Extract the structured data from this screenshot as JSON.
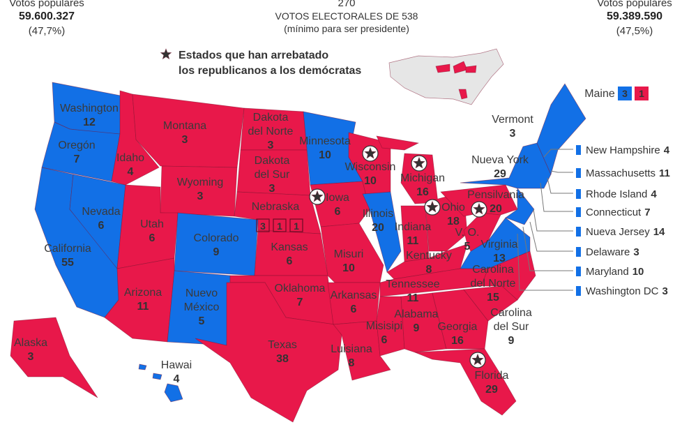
{
  "header": {
    "left": {
      "label": "Votos populares",
      "votes": "59.600.327",
      "share": "(47,7%)"
    },
    "center": {
      "number": "270",
      "line1": "VOTOS ELECTORALES DE 538",
      "line2": "(mínimo para ser presidente)"
    },
    "right": {
      "label": "Votos populares",
      "votes": "59.389.590",
      "share": "(47,5%)"
    }
  },
  "legend": {
    "line1": "Estados que han arrebatado",
    "line2": "los republicanos a los demócratas"
  },
  "states": [
    {
      "name": [
        "Washington"
      ],
      "votes": "12"
    },
    {
      "name": [
        "Oregón"
      ],
      "votes": "7"
    },
    {
      "name": [
        "California"
      ],
      "votes": "55"
    },
    {
      "name": [
        "Nevada"
      ],
      "votes": "6"
    },
    {
      "name": [
        "Idaho"
      ],
      "votes": "4"
    },
    {
      "name": [
        "Montana"
      ],
      "votes": "3"
    },
    {
      "name": [
        "Wyoming"
      ],
      "votes": "3"
    },
    {
      "name": [
        "Utah"
      ],
      "votes": "6"
    },
    {
      "name": [
        "Colorado"
      ],
      "votes": "9"
    },
    {
      "name": [
        "Arizona"
      ],
      "votes": "11"
    },
    {
      "name": [
        "Nuevo",
        "México"
      ],
      "votes": "5"
    },
    {
      "name": [
        "Dakota",
        "del Norte"
      ],
      "votes": "3"
    },
    {
      "name": [
        "Dakota",
        "del Sur"
      ],
      "votes": "3"
    },
    {
      "name": [
        "Kansas"
      ],
      "votes": "6"
    },
    {
      "name": [
        "Oklahoma"
      ],
      "votes": "7"
    },
    {
      "name": [
        "Texas"
      ],
      "votes": "38"
    },
    {
      "name": [
        "Minnesota"
      ],
      "votes": "10"
    },
    {
      "name": [
        "Iowa"
      ],
      "votes": "6"
    },
    {
      "name": [
        "Misuri"
      ],
      "votes": "10"
    },
    {
      "name": [
        "Arkansas"
      ],
      "votes": "6"
    },
    {
      "name": [
        "Luisiana"
      ],
      "votes": "8"
    },
    {
      "name": [
        "Wisconsin"
      ],
      "votes": "10"
    },
    {
      "name": [
        "Illinois"
      ],
      "votes": "20"
    },
    {
      "name": [
        "Michigan"
      ],
      "votes": "16"
    },
    {
      "name": [
        "Indiana"
      ],
      "votes": "11"
    },
    {
      "name": [
        "Ohio"
      ],
      "votes": "18"
    },
    {
      "name": [
        "Kentucky"
      ],
      "votes": "8"
    },
    {
      "name": [
        "Tennessee"
      ],
      "votes": "11"
    },
    {
      "name": [
        "Misisipi"
      ],
      "votes": "6"
    },
    {
      "name": [
        "Alabama"
      ],
      "votes": "9"
    },
    {
      "name": [
        "Georgia"
      ],
      "votes": "16"
    },
    {
      "name": [
        "Florida"
      ],
      "votes": "29"
    },
    {
      "name": [
        "Carolina",
        "del Sur"
      ],
      "votes": "9"
    },
    {
      "name": [
        "Carolina",
        "del Norte"
      ],
      "votes": "15"
    },
    {
      "name": [
        "Virginia"
      ],
      "votes": "13"
    },
    {
      "name": [
        "V. O."
      ],
      "votes": "5"
    },
    {
      "name": [
        "Pensilvania"
      ],
      "votes": "20"
    },
    {
      "name": [
        "Nueva York"
      ],
      "votes": "29"
    },
    {
      "name": [
        "Vermont"
      ],
      "votes": "3"
    },
    {
      "name": [
        "Alaska"
      ],
      "votes": "3"
    },
    {
      "name": [
        "Hawai"
      ],
      "votes": "4"
    }
  ],
  "split_states": [
    {
      "name": "Nebraska",
      "boxes": [
        "3",
        "1",
        "1"
      ]
    },
    {
      "name": "Maine",
      "boxes": [
        "3",
        "1"
      ]
    }
  ],
  "small_states": [
    {
      "name": "New Hampshire",
      "votes": "4"
    },
    {
      "name": "Massachusetts",
      "votes": "11"
    },
    {
      "name": "Rhode Island",
      "votes": "4"
    },
    {
      "name": "Connecticut",
      "votes": "7"
    },
    {
      "name": "Nueva Jersey",
      "votes": "14"
    },
    {
      "name": "Delaware",
      "votes": "3"
    },
    {
      "name": "Maryland",
      "votes": "10"
    },
    {
      "name": "Washington DC",
      "votes": "3"
    }
  ]
}
